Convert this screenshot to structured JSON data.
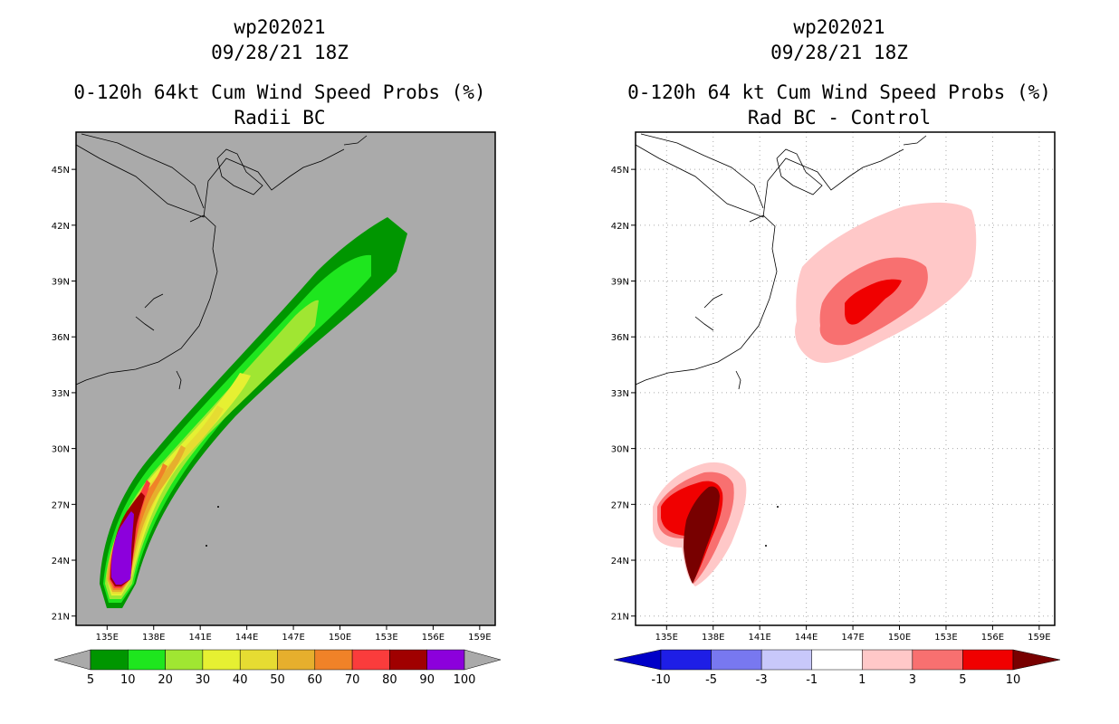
{
  "chart_data": [
    {
      "type": "filled-contour-map",
      "storm_id": "wp202021",
      "init_time": "09/28/21 18Z",
      "title": "0-120h 64kt Cum Wind Speed Probs (%)",
      "subtitle": "Radii BC",
      "background": "#aaaaaa",
      "lat_ticks": [
        "45N",
        "42N",
        "39N",
        "36N",
        "33N",
        "30N",
        "27N",
        "24N",
        "21N"
      ],
      "lon_ticks": [
        "135E",
        "138E",
        "141E",
        "144E",
        "147E",
        "150E",
        "153E",
        "156E",
        "159E"
      ],
      "lat_range": [
        20.5,
        47
      ],
      "lon_range": [
        133,
        160
      ],
      "colorbar_labels": [
        "5",
        "10",
        "20",
        "30",
        "40",
        "50",
        "60",
        "70",
        "80",
        "90",
        "100"
      ],
      "colorbar_colors": [
        "#009600",
        "#1ee61e",
        "#a0e632",
        "#e6f032",
        "#e6dc32",
        "#e6af2d",
        "#f08228",
        "#fa3c3c",
        "#a00000",
        "#8c00dc"
      ],
      "contour_levels": [
        5,
        10,
        20,
        30,
        40,
        50,
        60,
        70,
        80,
        90
      ]
    },
    {
      "type": "filled-contour-map",
      "storm_id": "wp202021",
      "init_time": "09/28/21 18Z",
      "title": "0-120h 64 kt Cum Wind Speed Probs (%)",
      "subtitle": "Rad BC - Control",
      "background": "#ffffff",
      "lat_ticks": [
        "45N",
        "42N",
        "39N",
        "36N",
        "33N",
        "30N",
        "27N",
        "24N",
        "21N"
      ],
      "lon_ticks": [
        "135E",
        "138E",
        "141E",
        "144E",
        "147E",
        "150E",
        "153E",
        "156E",
        "159E"
      ],
      "lat_range": [
        20.5,
        47
      ],
      "lon_range": [
        133,
        160
      ],
      "colorbar_labels": [
        "-10",
        "-5",
        "-3",
        "-1",
        "1",
        "3",
        "5",
        "10"
      ],
      "colorbar_colors": [
        "#0000c8",
        "#1e1ee6",
        "#7878f0",
        "#c8c8fa",
        "#ffffff",
        "#ffc8c8",
        "#f87070",
        "#f00000",
        "#780000"
      ],
      "contour_levels": [
        1,
        3,
        5,
        10
      ]
    }
  ]
}
